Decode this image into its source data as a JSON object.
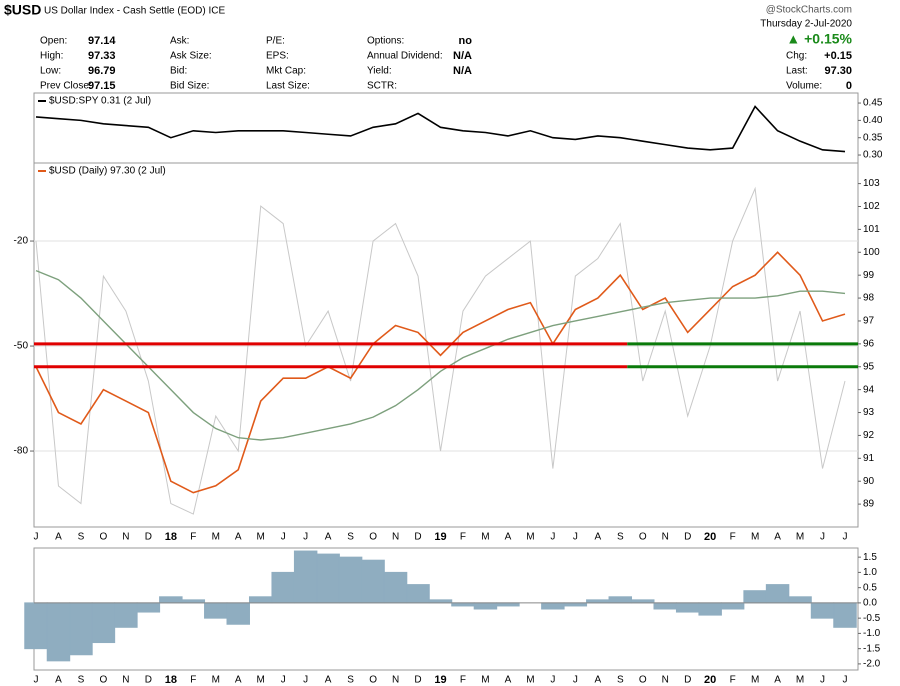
{
  "header": {
    "symbol": "$USD",
    "description": "US Dollar Index - Cash Settle (EOD) ICE",
    "source": "@StockCharts.com",
    "date": "Thursday  2-Jul-2020",
    "change_pct": "▲ +0.15%",
    "fields": [
      [
        {
          "label": "Open:",
          "value": "97.14"
        },
        {
          "label": "High:",
          "value": "97.33"
        },
        {
          "label": "Low:",
          "value": "96.79"
        },
        {
          "label": "Prev Close:",
          "value": "97.15"
        }
      ],
      [
        {
          "label": "Ask:"
        },
        {
          "label": "Ask Size:"
        },
        {
          "label": "Bid:"
        },
        {
          "label": "Bid Size:"
        }
      ],
      [
        {
          "label": "P/E:"
        },
        {
          "label": "EPS:"
        },
        {
          "label": "Mkt Cap:"
        },
        {
          "label": "Last Size:"
        }
      ],
      [
        {
          "label": "Options:",
          "value": "no"
        },
        {
          "label": "Annual Dividend:",
          "value": "N/A"
        },
        {
          "label": "Yield:",
          "value": "N/A"
        },
        {
          "label": "SCTR:"
        }
      ],
      [
        {
          "label": "Chg:",
          "value": "+0.15"
        },
        {
          "label": "Last:",
          "value": "97.30"
        },
        {
          "label": "Volume:",
          "value": "0"
        }
      ]
    ]
  },
  "chart_data": [
    {
      "type": "line",
      "series": [
        {
          "name": "$USD:SPY 0.31 (2 Jul)",
          "color": "#000000",
          "values": [
            0.41,
            0.405,
            0.4,
            0.39,
            0.385,
            0.38,
            0.35,
            0.37,
            0.365,
            0.37,
            0.37,
            0.37,
            0.365,
            0.36,
            0.355,
            0.38,
            0.39,
            0.42,
            0.38,
            0.37,
            0.365,
            0.355,
            0.37,
            0.35,
            0.345,
            0.355,
            0.35,
            0.34,
            0.33,
            0.32,
            0.315,
            0.32,
            0.44,
            0.37,
            0.34,
            0.315,
            0.31
          ]
        }
      ],
      "ylim": [
        0.277,
        0.479
      ],
      "yticks": [
        0.45,
        {
          "value": 0.4,
          "label": "0.40"
        },
        0.35,
        {
          "value": 0.3,
          "label": "0.30"
        }
      ]
    },
    {
      "type": "line",
      "categories": [
        "J",
        "A",
        "S",
        "O",
        "N",
        "D",
        "18",
        "F",
        "M",
        "A",
        "M",
        "J",
        "J",
        "A",
        "S",
        "O",
        "N",
        "D",
        "19",
        "F",
        "M",
        "A",
        "M",
        "J",
        "J",
        "A",
        "S",
        "O",
        "N",
        "D",
        "20",
        "F",
        "M",
        "A",
        "M",
        "J",
        "J"
      ],
      "series": [
        {
          "name": "$USD (Daily) 97.30 (2 Jul)",
          "color": "#e05a1a",
          "values": [
            95,
            93,
            92.5,
            94,
            93.5,
            93,
            90,
            89.5,
            89.8,
            90.5,
            93.5,
            94.5,
            94.5,
            95,
            94.5,
            96,
            96.8,
            96.5,
            95.5,
            96.5,
            97,
            97.5,
            97.8,
            96,
            97.5,
            98,
            99,
            97.5,
            98,
            96.5,
            97.5,
            98.5,
            99,
            100,
            99,
            97,
            97.3
          ]
        },
        {
          "color": "#7da07d",
          "values": [
            99.2,
            98.8,
            98,
            97,
            96,
            95,
            94,
            93,
            92.3,
            91.9,
            91.8,
            91.9,
            92.1,
            92.3,
            92.5,
            92.8,
            93.3,
            94,
            94.8,
            95.4,
            95.8,
            96.2,
            96.5,
            96.8,
            97,
            97.2,
            97.4,
            97.6,
            97.8,
            97.9,
            98,
            98,
            98,
            98.1,
            98.3,
            98.3,
            98.2
          ]
        },
        {
          "color": "#c8c8c8",
          "axis": "y2",
          "values": [
            -20,
            -90,
            -95,
            -30,
            -40,
            -60,
            -95,
            -98,
            -70,
            -80,
            -10,
            -15,
            -50,
            -40,
            -60,
            -20,
            -15,
            -30,
            -80,
            -40,
            -30,
            -25,
            -20,
            -85,
            -30,
            -25,
            -15,
            -60,
            -40,
            -70,
            -50,
            -20,
            -5,
            -60,
            -40,
            -85,
            -60
          ]
        }
      ],
      "hlines": [
        {
          "value": 96,
          "colors": [
            "#e00000",
            "#0a7a0a"
          ]
        },
        {
          "value": 95,
          "colors": [
            "#e00000",
            "#0a7a0a"
          ]
        }
      ],
      "ylim": [
        88.0,
        103.9
      ],
      "yticks": [
        89,
        90,
        91,
        92,
        93,
        94,
        95,
        96,
        97,
        98,
        99,
        100,
        101,
        102,
        103
      ],
      "y2lim": [
        -101.7,
        2.3
      ],
      "y2ticks": [
        -20,
        -50,
        -80
      ],
      "grid": true
    },
    {
      "type": "bar",
      "color": "#8fadc0",
      "categories": [
        "J",
        "A",
        "S",
        "O",
        "N",
        "D",
        "18",
        "F",
        "M",
        "A",
        "M",
        "J",
        "J",
        "A",
        "S",
        "O",
        "N",
        "D",
        "19",
        "F",
        "M",
        "A",
        "M",
        "J",
        "J",
        "A",
        "S",
        "O",
        "N",
        "D",
        "20",
        "F",
        "M",
        "A",
        "M",
        "J",
        "J"
      ],
      "values": [
        -1.5,
        -1.9,
        -1.7,
        -1.3,
        -0.8,
        -0.3,
        0.2,
        0.1,
        -0.5,
        -0.7,
        0.2,
        1.0,
        1.7,
        1.6,
        1.5,
        1.4,
        1.0,
        0.6,
        0.1,
        -0.1,
        -0.2,
        -0.1,
        0.0,
        -0.2,
        -0.1,
        0.1,
        0.2,
        0.1,
        -0.2,
        -0.3,
        -0.4,
        -0.2,
        0.4,
        0.6,
        0.2,
        -0.5,
        -0.8
      ],
      "ylim": [
        -2.2,
        1.8
      ],
      "yticks": [
        1.5,
        {
          "value": 1,
          "label": "1.0"
        },
        0.5,
        {
          "value": 0,
          "label": "0.0"
        },
        -0.5,
        {
          "value": -1,
          "label": "-1.0"
        },
        -1.5,
        {
          "value": -2,
          "label": "-2.0"
        }
      ]
    }
  ]
}
